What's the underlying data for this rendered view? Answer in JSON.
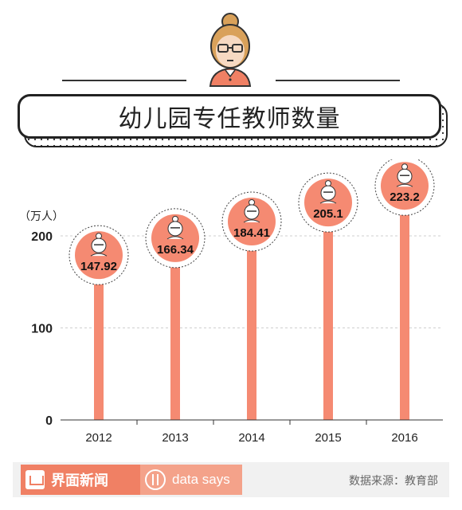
{
  "title": "幼儿园专任教师数量",
  "footer": {
    "brand": "界面新闻",
    "section": "data says",
    "source": "数据来源：教育部"
  },
  "colors": {
    "accent": "#f08064",
    "bar": "#f58a72",
    "circle": "#f58a72"
  },
  "icons": [
    "cartoon-girl-icon",
    "jiemian-logo-icon",
    "data-says-logo-icon"
  ],
  "chart_data": {
    "type": "bar",
    "title": "幼儿园专任教师数量",
    "unit_label": "（万人）",
    "categories": [
      "2012",
      "2013",
      "2014",
      "2015",
      "2016"
    ],
    "values": [
      147.92,
      166.34,
      184.41,
      205.1,
      223.2
    ],
    "value_labels": [
      "147.92",
      "166.34",
      "184.41",
      "205.1",
      "223.2"
    ],
    "ylim": [
      0,
      230
    ],
    "yticks": [
      0,
      100,
      200
    ],
    "grid": true,
    "legend": "none"
  }
}
